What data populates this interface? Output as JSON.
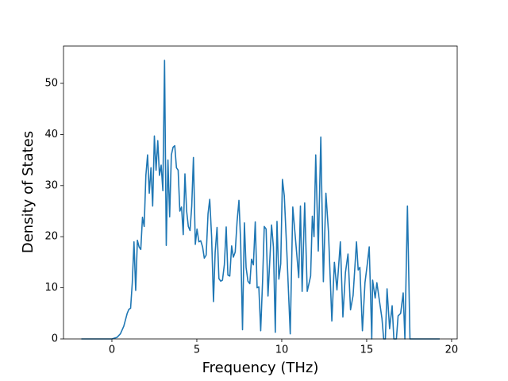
{
  "chart_data": {
    "type": "line",
    "xlabel": "Frequency (THz)",
    "ylabel": "Density of States",
    "color": "#1f77b4",
    "xlim": [
      -2.85,
      20.33
    ],
    "ylim": [
      0,
      57.3
    ],
    "xticks": [
      0,
      5,
      10,
      15,
      20
    ],
    "yticks": [
      0,
      10,
      20,
      30,
      40,
      50
    ],
    "x": [
      -1.8,
      0,
      0.3,
      0.5,
      0.7,
      0.9,
      1.0,
      1.1,
      1.2,
      1.3,
      1.4,
      1.5,
      1.6,
      1.7,
      1.8,
      1.9,
      2.0,
      2.1,
      2.2,
      2.3,
      2.4,
      2.5,
      2.6,
      2.7,
      2.8,
      2.9,
      3.0,
      3.1,
      3.2,
      3.3,
      3.4,
      3.5,
      3.6,
      3.7,
      3.8,
      3.9,
      4.0,
      4.1,
      4.2,
      4.3,
      4.4,
      4.5,
      4.6,
      4.7,
      4.8,
      4.91,
      5.01,
      5.12,
      5.23,
      5.34,
      5.44,
      5.55,
      5.66,
      5.76,
      5.87,
      5.98,
      6.08,
      6.19,
      6.3,
      6.41,
      6.51,
      6.62,
      6.73,
      6.83,
      6.94,
      7.05,
      7.15,
      7.26,
      7.37,
      7.48,
      7.58,
      7.69,
      7.8,
      7.9,
      8.01,
      8.12,
      8.22,
      8.33,
      8.44,
      8.55,
      8.65,
      8.76,
      8.87,
      8.97,
      9.08,
      9.19,
      9.29,
      9.4,
      9.51,
      9.62,
      9.72,
      9.83,
      9.94,
      10.04,
      10.15,
      10.3,
      10.5,
      10.65,
      11.0,
      11.1,
      11.2,
      11.35,
      11.5,
      11.7,
      11.8,
      11.9,
      12.0,
      12.15,
      12.3,
      12.45,
      12.6,
      12.75,
      12.95,
      13.1,
      13.25,
      13.45,
      13.6,
      13.75,
      13.9,
      14.05,
      14.2,
      14.4,
      14.5,
      14.6,
      14.75,
      14.9,
      15.05,
      15.15,
      15.3,
      15.35,
      15.5,
      15.6,
      15.75,
      15.9,
      16.0,
      16.1,
      16.2,
      16.35,
      16.5,
      16.6,
      16.75,
      16.85,
      17.0,
      17.15,
      17.25,
      17.4,
      17.55,
      19.3
    ],
    "values": [
      0,
      0,
      0.3,
      1,
      2.5,
      5,
      5.8,
      6,
      11,
      19,
      9.5,
      19.3,
      18,
      17.5,
      23.8,
      22,
      32,
      36,
      28.5,
      33.5,
      26,
      39.7,
      33,
      38.8,
      32,
      34,
      29,
      54.5,
      18.3,
      35,
      23.9,
      36,
      37.5,
      37.8,
      33.5,
      33,
      25,
      25.8,
      20.4,
      32.3,
      25,
      22,
      21.2,
      26,
      35.5,
      18.5,
      21.5,
      19,
      19.2,
      18,
      15.8,
      16.4,
      24.5,
      27.3,
      20,
      7.3,
      17,
      21.8,
      11.8,
      11.3,
      11.5,
      14.5,
      21.9,
      12.5,
      12.3,
      18.2,
      16,
      17,
      23,
      27.1,
      19,
      1.8,
      22.7,
      14,
      11.3,
      10.8,
      15.6,
      14.5,
      22.9,
      10,
      10.2,
      1.6,
      11.2,
      22,
      21.5,
      8.4,
      15,
      22.3,
      18,
      1.3,
      23,
      11.7,
      14.7,
      31.2,
      28,
      17,
      1,
      25.8,
      12,
      26,
      9.3,
      26.6,
      9.3,
      12.3,
      24,
      20,
      36,
      17.2,
      39.5,
      11.2,
      28.5,
      21,
      3.5,
      15,
      9.6,
      19,
      4.3,
      13,
      16.6,
      5.7,
      8.5,
      19,
      13.5,
      14,
      1.6,
      11,
      15,
      18,
      0,
      11.5,
      8,
      11,
      7.5,
      4,
      0,
      0,
      9.8,
      2,
      6.5,
      0,
      0,
      4.5,
      5,
      9,
      0,
      26,
      0,
      0
    ]
  }
}
